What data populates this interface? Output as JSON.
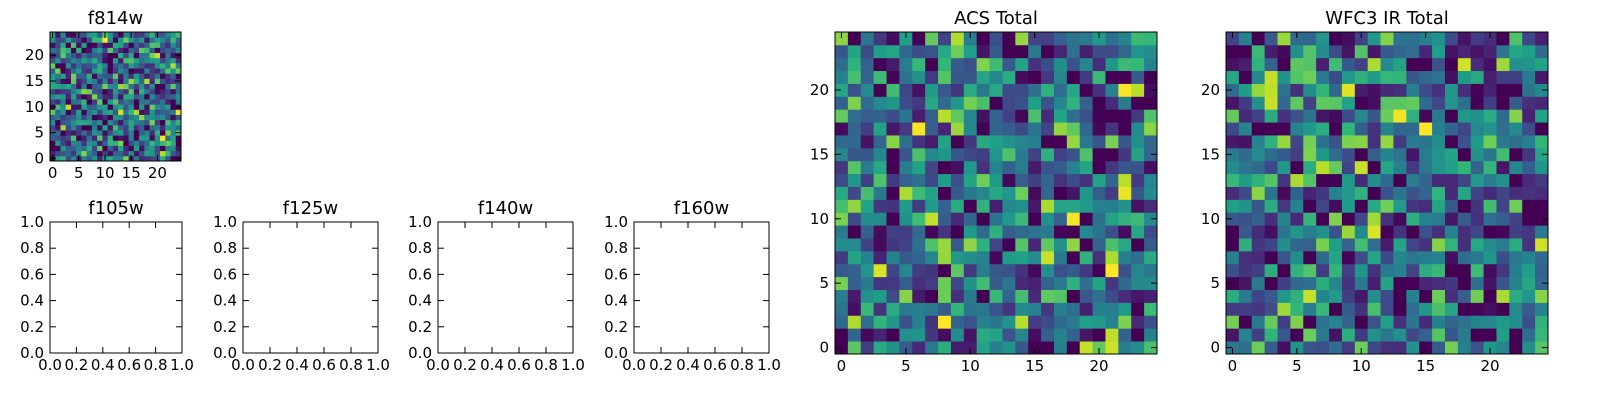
{
  "figure": {
    "background": "#ffffff",
    "colormap": "viridis"
  },
  "chart_data": [
    {
      "id": "f814w",
      "type": "heatmap",
      "title": "f814w",
      "xlabel": "",
      "ylabel": "",
      "xlim": [
        -0.5,
        24.5
      ],
      "ylim": [
        -0.5,
        24.5
      ],
      "xticks": [
        0,
        5,
        10,
        15,
        20
      ],
      "yticks": [
        0,
        5,
        10,
        15,
        20
      ],
      "xtick_labels": [
        "0",
        "5",
        "10",
        "15",
        "20"
      ],
      "ytick_labels": [
        "0",
        "5",
        "10",
        "15",
        "20"
      ],
      "grid": false,
      "legend": "none",
      "shape": [
        25,
        25
      ],
      "colormap": "viridis",
      "seed": 814,
      "note": "random-noise image"
    },
    {
      "id": "f105w",
      "type": "scatter",
      "title": "f105w",
      "xlabel": "",
      "ylabel": "",
      "xlim": [
        0.0,
        1.0
      ],
      "ylim": [
        0.0,
        1.0
      ],
      "xticks": [
        0.0,
        0.2,
        0.4,
        0.6,
        0.8,
        1.0
      ],
      "yticks": [
        0.0,
        0.2,
        0.4,
        0.6,
        0.8,
        1.0
      ],
      "xtick_labels": [
        "0.0",
        "0.2",
        "0.4",
        "0.6",
        "0.8",
        "1.0"
      ],
      "ytick_labels": [
        "0.0",
        "0.2",
        "0.4",
        "0.6",
        "0.8",
        "1.0"
      ],
      "grid": false,
      "legend": "none",
      "empty": true
    },
    {
      "id": "f125w",
      "type": "scatter",
      "title": "f125w",
      "xlabel": "",
      "ylabel": "",
      "xlim": [
        0.0,
        1.0
      ],
      "ylim": [
        0.0,
        1.0
      ],
      "xticks": [
        0.0,
        0.2,
        0.4,
        0.6,
        0.8,
        1.0
      ],
      "yticks": [
        0.0,
        0.2,
        0.4,
        0.6,
        0.8,
        1.0
      ],
      "xtick_labels": [
        "0.0",
        "0.2",
        "0.4",
        "0.6",
        "0.8",
        "1.0"
      ],
      "ytick_labels": [
        "0.0",
        "0.2",
        "0.4",
        "0.6",
        "0.8",
        "1.0"
      ],
      "grid": false,
      "legend": "none",
      "empty": true
    },
    {
      "id": "f140w",
      "type": "scatter",
      "title": "f140w",
      "xlabel": "",
      "ylabel": "",
      "xlim": [
        0.0,
        1.0
      ],
      "ylim": [
        0.0,
        1.0
      ],
      "xticks": [
        0.0,
        0.2,
        0.4,
        0.6,
        0.8,
        1.0
      ],
      "yticks": [
        0.0,
        0.2,
        0.4,
        0.6,
        0.8,
        1.0
      ],
      "xtick_labels": [
        "0.0",
        "0.2",
        "0.4",
        "0.6",
        "0.8",
        "1.0"
      ],
      "ytick_labels": [
        "0.0",
        "0.2",
        "0.4",
        "0.6",
        "0.8",
        "1.0"
      ],
      "grid": false,
      "legend": "none",
      "empty": true
    },
    {
      "id": "f160w",
      "type": "scatter",
      "title": "f160w",
      "xlabel": "",
      "ylabel": "",
      "xlim": [
        0.0,
        1.0
      ],
      "ylim": [
        0.0,
        1.0
      ],
      "xticks": [
        0.0,
        0.2,
        0.4,
        0.6,
        0.8,
        1.0
      ],
      "yticks": [
        0.0,
        0.2,
        0.4,
        0.6,
        0.8,
        1.0
      ],
      "xtick_labels": [
        "0.0",
        "0.2",
        "0.4",
        "0.6",
        "0.8",
        "1.0"
      ],
      "ytick_labels": [
        "0.0",
        "0.2",
        "0.4",
        "0.6",
        "0.8",
        "1.0"
      ],
      "grid": false,
      "legend": "none",
      "empty": true
    },
    {
      "id": "acs-total",
      "type": "heatmap",
      "title": "ACS Total",
      "xlabel": "",
      "ylabel": "",
      "xlim": [
        -0.5,
        24.5
      ],
      "ylim": [
        -0.5,
        24.5
      ],
      "xticks": [
        0,
        5,
        10,
        15,
        20
      ],
      "yticks": [
        0,
        5,
        10,
        15,
        20
      ],
      "xtick_labels": [
        "0",
        "5",
        "10",
        "15",
        "20"
      ],
      "ytick_labels": [
        "0",
        "5",
        "10",
        "15",
        "20"
      ],
      "grid": false,
      "legend": "none",
      "shape": [
        25,
        25
      ],
      "colormap": "viridis",
      "seed": 1001,
      "note": "random-noise image"
    },
    {
      "id": "wfc3-ir-total",
      "type": "heatmap",
      "title": "WFC3 IR Total",
      "xlabel": "",
      "ylabel": "",
      "xlim": [
        -0.5,
        24.5
      ],
      "ylim": [
        -0.5,
        24.5
      ],
      "xticks": [
        0,
        5,
        10,
        15,
        20
      ],
      "yticks": [
        0,
        5,
        10,
        15,
        20
      ],
      "xtick_labels": [
        "0",
        "5",
        "10",
        "15",
        "20"
      ],
      "ytick_labels": [
        "0",
        "5",
        "10",
        "15",
        "20"
      ],
      "grid": false,
      "legend": "none",
      "shape": [
        25,
        25
      ],
      "colormap": "viridis",
      "seed": 3003,
      "note": "random-noise image"
    }
  ]
}
